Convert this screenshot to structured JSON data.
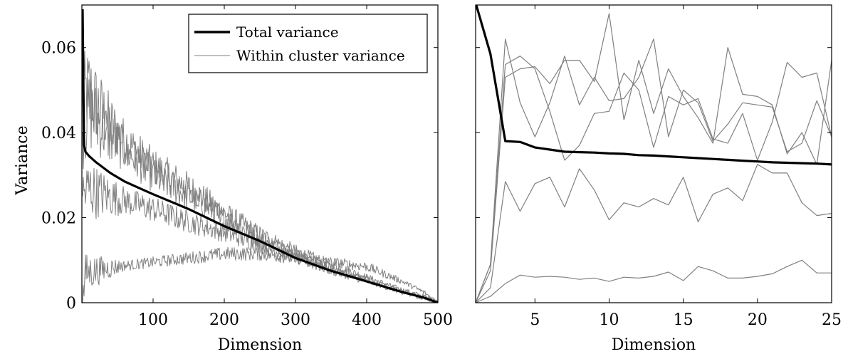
{
  "chart_data": [
    {
      "type": "line",
      "xlabel": "Dimension",
      "ylabel": "Variance",
      "xlim": [
        0,
        500
      ],
      "ylim": [
        0,
        0.07
      ],
      "xticks": [
        100,
        200,
        300,
        400,
        500
      ],
      "xtick_labels": [
        "100",
        "200",
        "300",
        "400",
        "500"
      ],
      "yticks": [
        0,
        0.02,
        0.04,
        0.06
      ],
      "ytick_labels": [
        "0",
        "0.02",
        "0.04",
        "0.06"
      ],
      "grid": false,
      "legend": "top-right",
      "series": [
        {
          "name": "Total variance",
          "style": "thick-black",
          "x": [
            1,
            3,
            5,
            10,
            20,
            40,
            60,
            80,
            100,
            150,
            200,
            250,
            300,
            350,
            400,
            450,
            480,
            500
          ],
          "y": [
            0.069,
            0.037,
            0.0355,
            0.0345,
            0.033,
            0.0305,
            0.0285,
            0.027,
            0.0255,
            0.022,
            0.018,
            0.0145,
            0.0105,
            0.0075,
            0.005,
            0.0025,
            0.0012,
            0.0
          ]
        },
        {
          "name": "Within cluster variance",
          "style": "thin-gray",
          "x": [
            1,
            10,
            20,
            40,
            60,
            80,
            100,
            150,
            200,
            250,
            300,
            350,
            400,
            450,
            480,
            500
          ],
          "y": [
            0.048,
            0.05,
            0.047,
            0.042,
            0.038,
            0.035,
            0.032,
            0.027,
            0.021,
            0.016,
            0.012,
            0.009,
            0.006,
            0.003,
            0.0015,
            0.0
          ]
        },
        {
          "style": "thin-gray",
          "x": [
            1,
            10,
            20,
            40,
            60,
            80,
            100,
            150,
            200,
            250,
            300,
            350,
            400,
            450,
            480,
            500
          ],
          "y": [
            0.04,
            0.045,
            0.043,
            0.039,
            0.036,
            0.033,
            0.03,
            0.025,
            0.02,
            0.015,
            0.0115,
            0.008,
            0.0055,
            0.0025,
            0.0012,
            0.0
          ]
        },
        {
          "style": "thin-gray",
          "x": [
            1,
            10,
            20,
            40,
            60,
            80,
            100,
            150,
            200,
            250,
            300,
            350,
            400,
            450,
            480,
            500
          ],
          "y": [
            0.025,
            0.027,
            0.026,
            0.025,
            0.024,
            0.023,
            0.022,
            0.019,
            0.0165,
            0.0135,
            0.0105,
            0.0075,
            0.005,
            0.0025,
            0.0012,
            0.0
          ]
        },
        {
          "style": "thin-gray",
          "x": [
            1,
            5,
            20,
            50,
            100,
            150,
            200,
            250,
            300,
            350,
            400,
            450,
            480,
            500
          ],
          "y": [
            0.0,
            0.007,
            0.0075,
            0.0085,
            0.0095,
            0.0105,
            0.0115,
            0.0115,
            0.0105,
            0.0095,
            0.0085,
            0.005,
            0.0025,
            0.0
          ]
        }
      ]
    },
    {
      "type": "line",
      "xlabel": "Dimension",
      "ylabel": "",
      "xlim": [
        1,
        25
      ],
      "ylim": [
        0,
        0.07
      ],
      "xticks": [
        5,
        10,
        15,
        20,
        25
      ],
      "xtick_labels": [
        "5",
        "10",
        "15",
        "20",
        "25"
      ],
      "yticks": [
        0,
        0.02,
        0.04,
        0.06
      ],
      "ytick_labels": [],
      "grid": false,
      "series": [
        {
          "name": "Total variance",
          "style": "thick-black",
          "x": [
            1,
            2,
            3,
            4,
            5,
            6,
            7,
            8,
            9,
            10,
            11,
            12,
            13,
            14,
            15,
            16,
            17,
            18,
            19,
            20,
            21,
            22,
            23,
            24,
            25
          ],
          "y": [
            0.0705,
            0.0585,
            0.038,
            0.0378,
            0.0365,
            0.036,
            0.0355,
            0.0354,
            0.0353,
            0.0351,
            0.035,
            0.0347,
            0.0346,
            0.0344,
            0.0342,
            0.034,
            0.0338,
            0.0336,
            0.0334,
            0.0332,
            0.033,
            0.0329,
            0.0328,
            0.0327,
            0.0325
          ]
        },
        {
          "name": "Within cluster variance",
          "style": "thin-gray",
          "x": [
            1,
            2,
            3,
            4,
            5,
            6,
            7,
            8,
            9,
            10,
            11,
            12,
            13,
            14,
            15,
            16,
            17,
            18,
            19,
            20,
            21,
            22,
            23,
            24,
            25
          ],
          "y": [
            0.0,
            0.009,
            0.062,
            0.047,
            0.039,
            0.047,
            0.058,
            0.0465,
            0.053,
            0.0475,
            0.048,
            0.053,
            0.062,
            0.039,
            0.05,
            0.047,
            0.038,
            0.042,
            0.047,
            0.0465,
            0.046,
            0.0355,
            0.0375,
            0.0475,
            0.039
          ]
        },
        {
          "style": "thin-gray",
          "x": [
            1,
            2,
            3,
            4,
            5,
            6,
            7,
            8,
            9,
            10,
            11,
            12,
            13,
            14,
            15,
            16,
            17,
            18,
            19,
            20,
            21,
            22,
            23,
            24,
            25
          ],
          "y": [
            0.0,
            0.0075,
            0.053,
            0.055,
            0.0555,
            0.0515,
            0.057,
            0.057,
            0.052,
            0.068,
            0.043,
            0.057,
            0.0445,
            0.055,
            0.0485,
            0.0435,
            0.0375,
            0.06,
            0.049,
            0.0485,
            0.0465,
            0.035,
            0.04,
            0.0325,
            0.057
          ]
        },
        {
          "style": "thin-gray",
          "x": [
            1,
            2,
            3,
            4,
            5,
            6,
            7,
            8,
            9,
            10,
            11,
            12,
            13,
            14,
            15,
            16,
            17,
            18,
            19,
            20,
            21,
            22,
            23,
            24,
            25
          ],
          "y": [
            0.0,
            0.009,
            0.056,
            0.058,
            0.055,
            0.045,
            0.0335,
            0.037,
            0.0445,
            0.045,
            0.054,
            0.05,
            0.0365,
            0.0485,
            0.0465,
            0.048,
            0.0385,
            0.0375,
            0.0445,
            0.0335,
            0.0425,
            0.0565,
            0.053,
            0.054,
            0.039
          ]
        },
        {
          "style": "thin-gray",
          "x": [
            1,
            2,
            3,
            4,
            5,
            6,
            7,
            8,
            9,
            10,
            11,
            12,
            13,
            14,
            15,
            16,
            17,
            18,
            19,
            20,
            21,
            22,
            23,
            24,
            25
          ],
          "y": [
            0.0,
            0.0035,
            0.0285,
            0.0215,
            0.028,
            0.0295,
            0.0225,
            0.0315,
            0.0265,
            0.0195,
            0.0235,
            0.0225,
            0.0245,
            0.023,
            0.0295,
            0.019,
            0.0255,
            0.027,
            0.024,
            0.0325,
            0.0305,
            0.0305,
            0.0235,
            0.0205,
            0.021
          ]
        },
        {
          "style": "thin-gray",
          "x": [
            1,
            2,
            3,
            4,
            5,
            6,
            7,
            8,
            9,
            10,
            11,
            12,
            13,
            14,
            15,
            16,
            17,
            18,
            19,
            20,
            21,
            22,
            23,
            24,
            25
          ],
          "y": [
            0.0,
            0.0015,
            0.0045,
            0.0065,
            0.006,
            0.0062,
            0.006,
            0.0055,
            0.0058,
            0.005,
            0.006,
            0.0058,
            0.0062,
            0.0072,
            0.0052,
            0.0085,
            0.0075,
            0.0058,
            0.0058,
            0.0062,
            0.0068,
            0.0085,
            0.01,
            0.007,
            0.007
          ]
        }
      ]
    }
  ]
}
